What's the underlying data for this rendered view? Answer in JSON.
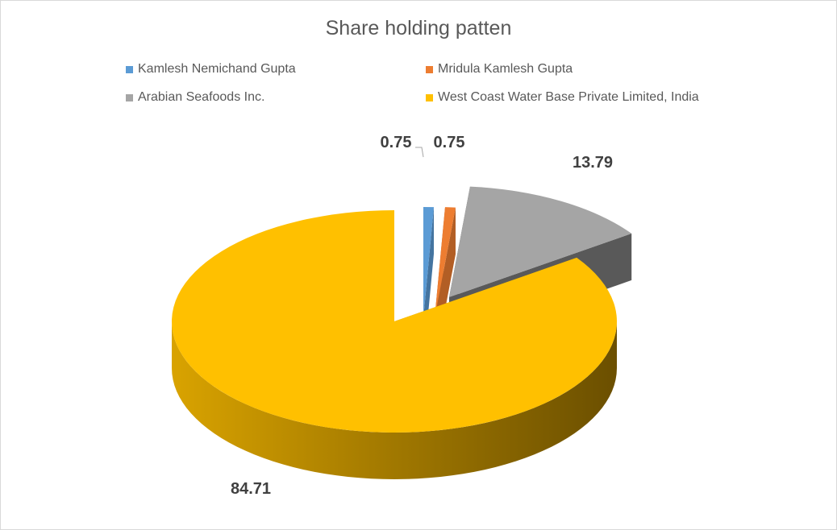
{
  "chart_data": {
    "type": "pie",
    "title": "Share holding patten",
    "categories": [
      "Kamlesh Nemichand Gupta",
      "Mridula Kamlesh Gupta",
      "Arabian Seafoods Inc.",
      "West Coast Water Base Private Limited, India"
    ],
    "values": [
      0.75,
      0.75,
      13.79,
      84.71
    ],
    "value_labels": [
      "0.75",
      "0.75",
      "13.79",
      "84.71"
    ],
    "colors": [
      "#5b9bd5",
      "#ed7d31",
      "#a5a5a5",
      "#ffc000"
    ],
    "legend_position": "top",
    "style": "3-D exploded pie"
  }
}
